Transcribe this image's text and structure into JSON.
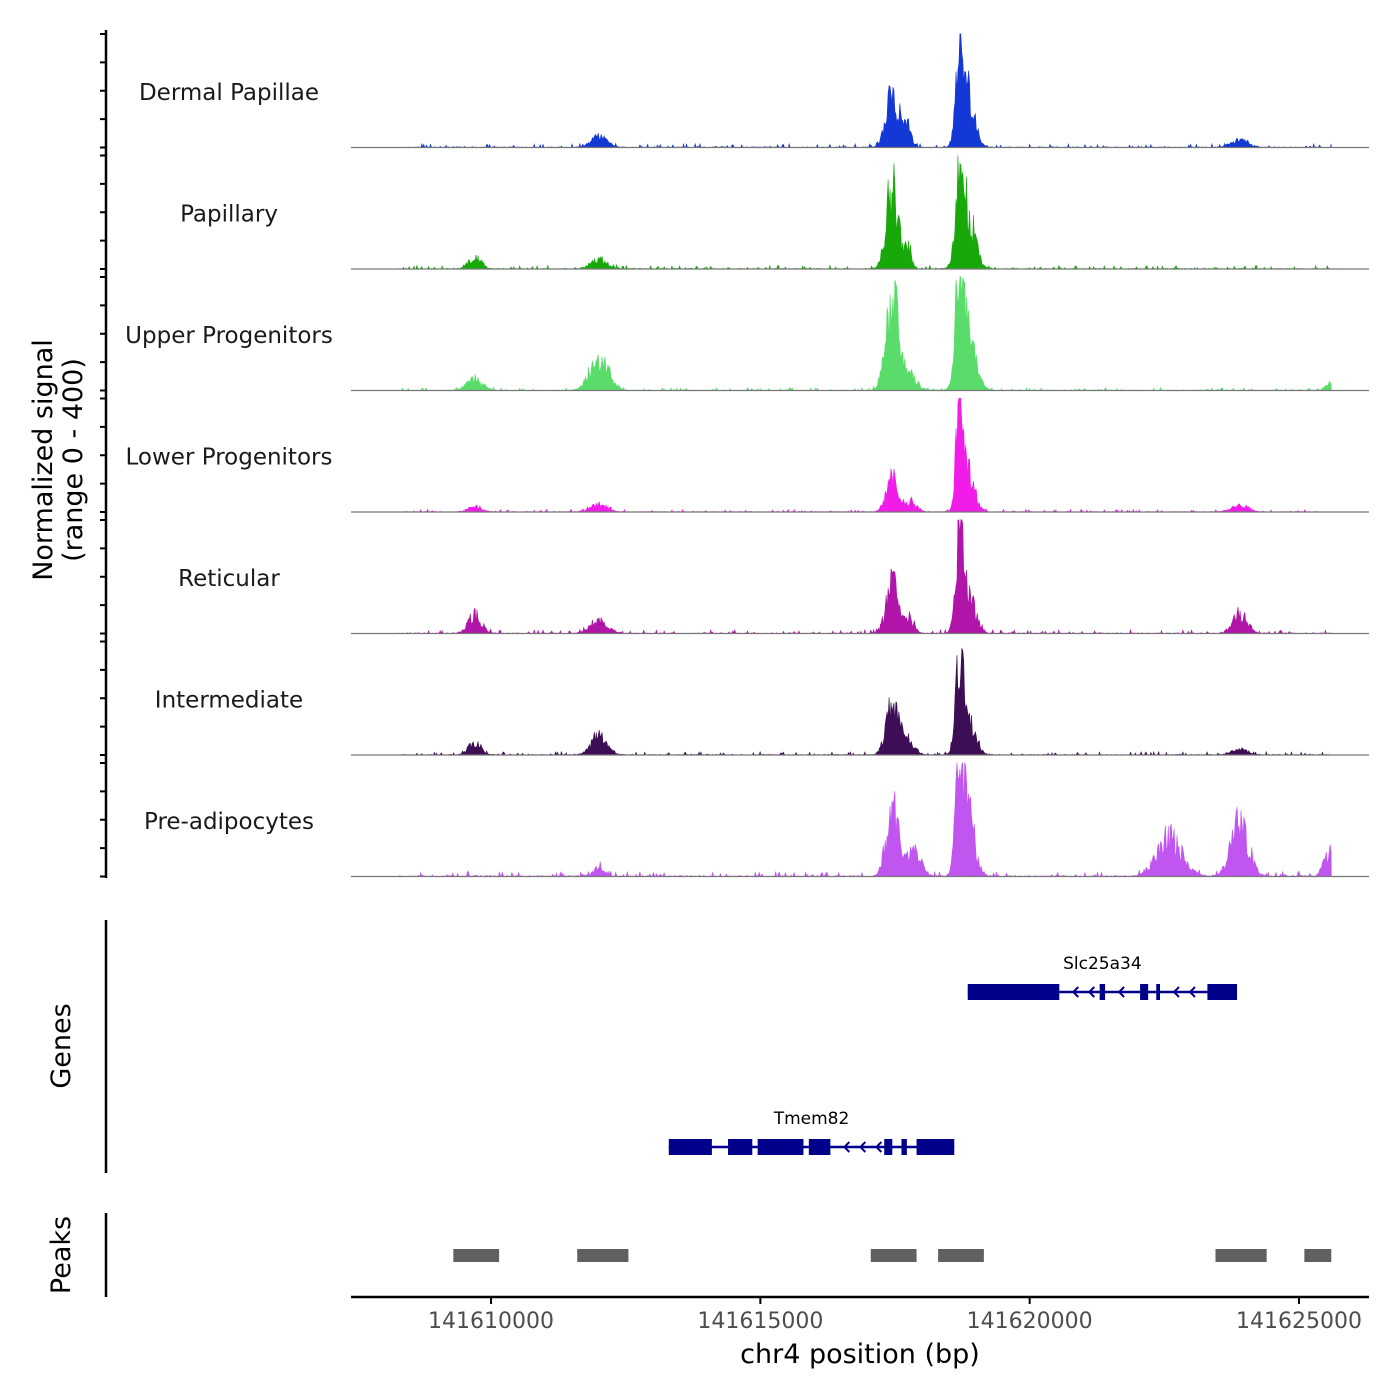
{
  "chart_data": {
    "type": "area",
    "chromosome": "chr4",
    "xlim": [
      141607400,
      141626300
    ],
    "ylim": [
      0,
      400
    ],
    "ylabel_line1": "Normalized signal",
    "ylabel_line2": "(range 0 - 400)",
    "xlabel": "chr4 position (bp)",
    "x_ticks": [
      141610000,
      141615000,
      141620000,
      141625000
    ],
    "x_tick_labels": [
      "141610000",
      "141615000",
      "141620000",
      "141625000"
    ],
    "series": [
      {
        "name": "Dermal Papillae",
        "color": "#1438d6",
        "peaks": [
          [
            141612000,
            40,
            140
          ],
          [
            141617450,
            230,
            110
          ],
          [
            141617720,
            90,
            70
          ],
          [
            141618700,
            380,
            70
          ],
          [
            141618850,
            200,
            120
          ],
          [
            141623900,
            30,
            150
          ]
        ],
        "noise": 8
      },
      {
        "name": "Papillary",
        "color": "#18a80a",
        "peaks": [
          [
            141609700,
            40,
            120
          ],
          [
            141612000,
            38,
            140
          ],
          [
            141617450,
            310,
            110
          ],
          [
            141617750,
            90,
            60
          ],
          [
            141618700,
            360,
            70
          ],
          [
            141618850,
            200,
            130
          ]
        ],
        "noise": 8
      },
      {
        "name": "Upper Progenitors",
        "color": "#59dc6a",
        "peaks": [
          [
            141609700,
            45,
            140
          ],
          [
            141612000,
            120,
            170
          ],
          [
            141617450,
            340,
            120
          ],
          [
            141617750,
            60,
            140
          ],
          [
            141618700,
            440,
            70
          ],
          [
            141618850,
            220,
            140
          ],
          [
            141625550,
            25,
            60
          ]
        ],
        "noise": 6
      },
      {
        "name": "Lower Progenitors",
        "color": "#f21ce8",
        "peaks": [
          [
            141609700,
            20,
            120
          ],
          [
            141612000,
            30,
            140
          ],
          [
            141617450,
            130,
            110
          ],
          [
            141617800,
            40,
            100
          ],
          [
            141618700,
            400,
            60
          ],
          [
            141618850,
            160,
            120
          ],
          [
            141623900,
            25,
            150
          ]
        ],
        "noise": 6
      },
      {
        "name": "Reticular",
        "color": "#b014a8",
        "peaks": [
          [
            141609700,
            70,
            120
          ],
          [
            141612000,
            50,
            150
          ],
          [
            141617450,
            190,
            110
          ],
          [
            141617750,
            60,
            100
          ],
          [
            141618700,
            310,
            70
          ],
          [
            141618850,
            150,
            130
          ],
          [
            141623900,
            80,
            130
          ]
        ],
        "noise": 8
      },
      {
        "name": "Intermediate",
        "color": "#3d0e55",
        "peaks": [
          [
            141609700,
            50,
            110
          ],
          [
            141612000,
            75,
            140
          ],
          [
            141617450,
            220,
            110
          ],
          [
            141617750,
            60,
            110
          ],
          [
            141618700,
            330,
            70
          ],
          [
            141618850,
            150,
            130
          ],
          [
            141623900,
            20,
            150
          ]
        ],
        "noise": 7
      },
      {
        "name": "Pre-adipocytes",
        "color": "#c155f0",
        "peaks": [
          [
            141612000,
            30,
            100
          ],
          [
            141617450,
            280,
            110
          ],
          [
            141617850,
            100,
            130
          ],
          [
            141618700,
            420,
            70
          ],
          [
            141618850,
            250,
            120
          ],
          [
            141622600,
            150,
            230
          ],
          [
            141623900,
            200,
            160
          ],
          [
            141625550,
            90,
            90
          ]
        ],
        "noise": 12
      }
    ],
    "genes_label": "Genes",
    "genes": [
      {
        "name": "Slc25a34",
        "start": 141618850,
        "end": 141623850,
        "strand": "-",
        "row": 0,
        "exons": [
          [
            141618850,
            141620550
          ],
          [
            141621300,
            141621400
          ],
          [
            141622050,
            141622200
          ],
          [
            141622350,
            141622420
          ],
          [
            141623300,
            141623850
          ]
        ]
      },
      {
        "name": "Tmem82",
        "start": 141613300,
        "end": 141618600,
        "strand": "-",
        "row": 1,
        "exons": [
          [
            141613300,
            141614100
          ],
          [
            141614400,
            141614850
          ],
          [
            141614950,
            141615800
          ],
          [
            141615900,
            141616300
          ],
          [
            141617300,
            141617450
          ],
          [
            141617620,
            141617720
          ],
          [
            141617900,
            141618600
          ]
        ]
      }
    ],
    "peaks_label": "Peaks",
    "peak_regions": [
      [
        141609300,
        141610150
      ],
      [
        141611600,
        141612550
      ],
      [
        141617050,
        141617900
      ],
      [
        141618300,
        141619150
      ],
      [
        141623450,
        141624400
      ],
      [
        141625100,
        141625600
      ]
    ],
    "colors": {
      "gene": "#00008b",
      "peak": "#606060",
      "axis": "#000000",
      "baseline": "#777777"
    }
  }
}
